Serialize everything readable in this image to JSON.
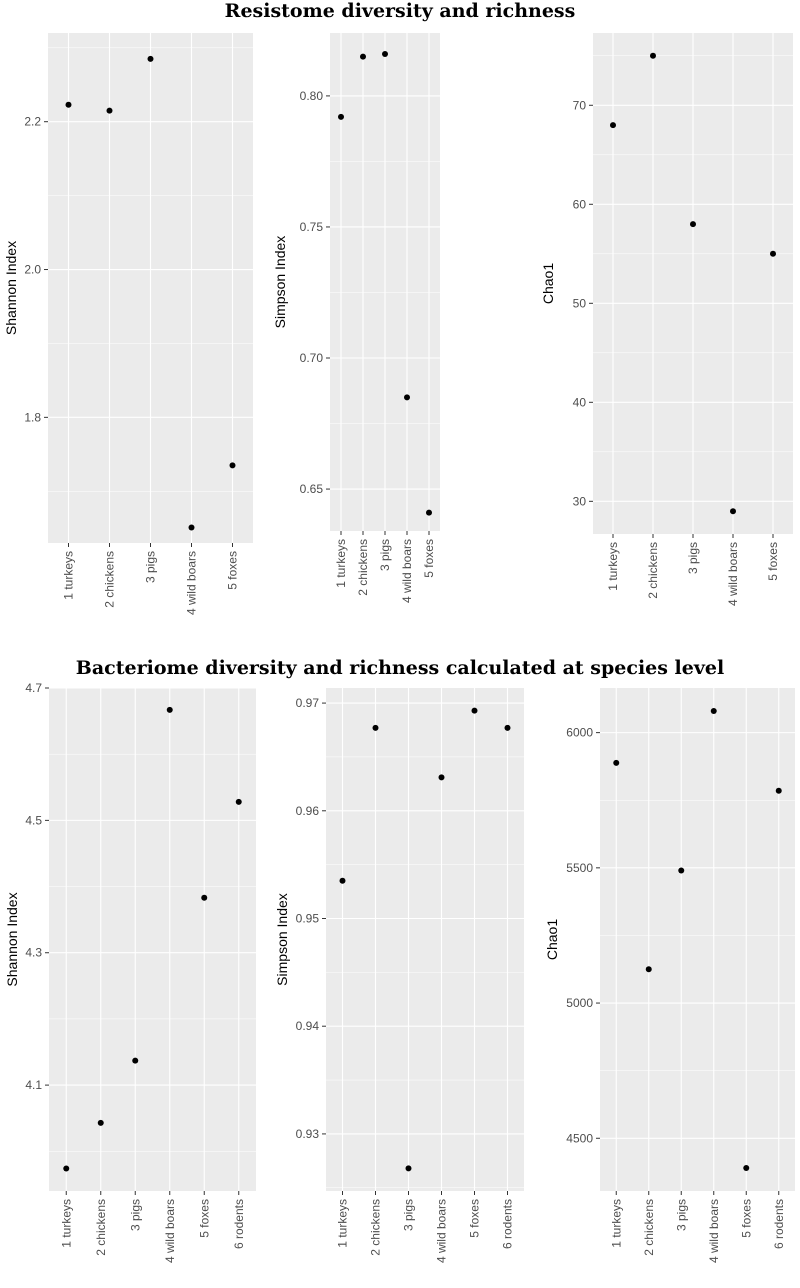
{
  "figure": {
    "sections": [
      {
        "title": "Resistome diversity and richness"
      },
      {
        "title": "Bacteriome diversity and richness calculated at species level"
      }
    ]
  },
  "chart_data": [
    {
      "type": "scatter",
      "section": 0,
      "categories": [
        "1 turkeys",
        "2 chickens",
        "3 pigs",
        "4 wild boars",
        "5 foxes"
      ],
      "values": [
        2.223,
        2.215,
        2.285,
        1.651,
        1.735
      ],
      "ylabel": "Shannon Index",
      "xlabel": "",
      "ylim": [
        1.63,
        2.32
      ],
      "yticks": [
        1.8,
        2.0,
        2.2
      ],
      "ytick_labels": [
        "1.8",
        "2.0",
        "2.2"
      ],
      "grid": true
    },
    {
      "type": "scatter",
      "section": 0,
      "categories": [
        "1 turkeys",
        "2 chickens",
        "3 pigs",
        "4 wild boars",
        "5 foxes"
      ],
      "values": [
        0.792,
        0.815,
        0.816,
        0.685,
        0.641
      ],
      "ylabel": "Simpson Index",
      "xlabel": "",
      "ylim": [
        0.634,
        0.824
      ],
      "yticks": [
        0.65,
        0.7,
        0.75,
        0.8
      ],
      "ytick_labels": [
        "0.65",
        "0.70",
        "0.75",
        "0.80"
      ],
      "grid": true
    },
    {
      "type": "scatter",
      "section": 0,
      "categories": [
        "1 turkeys",
        "2 chickens",
        "3 pigs",
        "4 wild boars",
        "5 foxes"
      ],
      "values": [
        68,
        75,
        58,
        29,
        55
      ],
      "ylabel": "Chao1",
      "xlabel": "",
      "ylim": [
        26.7,
        77.3
      ],
      "yticks": [
        30,
        40,
        50,
        60,
        70
      ],
      "ytick_labels": [
        "30",
        "40",
        "50",
        "60",
        "70"
      ],
      "grid": true
    },
    {
      "type": "scatter",
      "section": 1,
      "categories": [
        "1 turkeys",
        "2 chickens",
        "3 pigs",
        "4 wild boars",
        "5 foxes",
        "6 rodents"
      ],
      "values": [
        3.974,
        4.043,
        4.137,
        4.667,
        4.383,
        4.528
      ],
      "ylabel": "Shannon Index",
      "xlabel": "",
      "ylim": [
        3.94,
        4.7
      ],
      "yticks": [
        4.1,
        4.3,
        4.5,
        4.7
      ],
      "ytick_labels": [
        "4.1",
        "4.3",
        "4.5",
        "4.7"
      ],
      "grid": true
    },
    {
      "type": "scatter",
      "section": 1,
      "categories": [
        "1 turkeys",
        "2 chickens",
        "3 pigs",
        "4 wild boars",
        "5 foxes",
        "6 rodents"
      ],
      "values": [
        0.9535,
        0.9677,
        0.9268,
        0.9631,
        0.9693,
        0.9677
      ],
      "ylabel": "Simpson Index",
      "xlabel": "",
      "ylim": [
        0.9247,
        0.9714
      ],
      "yticks": [
        0.93,
        0.94,
        0.95,
        0.96,
        0.97
      ],
      "ytick_labels": [
        "0.93",
        "0.94",
        "0.95",
        "0.96",
        "0.97"
      ],
      "grid": true
    },
    {
      "type": "scatter",
      "section": 1,
      "categories": [
        "1 turkeys",
        "2 chickens",
        "3 pigs",
        "4 wild boars",
        "5 foxes",
        "6 rodents"
      ],
      "values": [
        5888,
        5125,
        5490,
        6080,
        4390,
        5785
      ],
      "ylabel": "Chao1",
      "xlabel": "",
      "ylim": [
        4305,
        6165
      ],
      "yticks": [
        4500,
        5000,
        5500,
        6000
      ],
      "ytick_labels": [
        "4500",
        "5000",
        "5500",
        "6000"
      ],
      "grid": true
    }
  ]
}
